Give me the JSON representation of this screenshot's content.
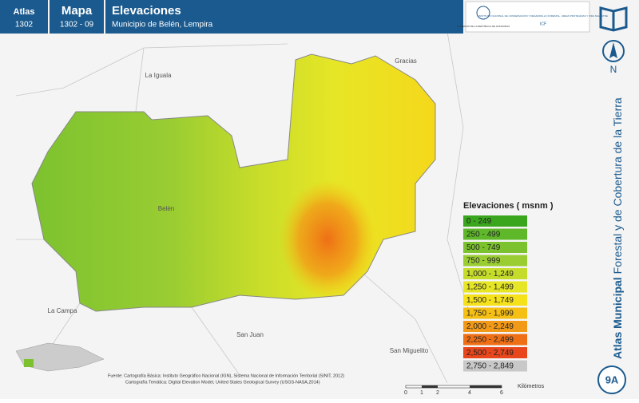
{
  "header": {
    "atlas_label": "Atlas",
    "atlas_number": "1302",
    "mapa_label": "Mapa",
    "mapa_number": "1302 - 09",
    "title": "Elevaciones",
    "subtitle": "Municipio de Belén, Lempira",
    "logo_left": "GOBIERNO DE LA REPÚBLICA DE HONDURAS",
    "logo_right": "INSTITUTO NACIONAL DE CONSERVACIÓN Y DESARROLLO FORESTAL, ÁREAS PROTEGIDAS Y VIDA SILVESTRE",
    "logo_acronym": "ICF"
  },
  "side": {
    "title_bold": "Atlas Municipal",
    "title_rest": "Forestal y de Cobertura de la Tierra",
    "north": "N",
    "badge": "9A"
  },
  "places": [
    "La Iguala",
    "Gracias",
    "Belén",
    "La Campa",
    "San Juan",
    "San Miguelito"
  ],
  "legend": {
    "title": "Elevaciones ( msnm )",
    "items": [
      {
        "label": "0 - 249",
        "color": "#3aa61e"
      },
      {
        "label": "250 - 499",
        "color": "#5fb82a"
      },
      {
        "label": "500 - 749",
        "color": "#7cc22f"
      },
      {
        "label": "750 - 999",
        "color": "#9acd32"
      },
      {
        "label": "1,000 - 1,249",
        "color": "#c6dc2a"
      },
      {
        "label": "1,250 - 1,499",
        "color": "#e6e626"
      },
      {
        "label": "1,500 - 1,749",
        "color": "#f5e21a"
      },
      {
        "label": "1,750 - 1,999",
        "color": "#f5bf14"
      },
      {
        "label": "2,000 - 2,249",
        "color": "#f29a17"
      },
      {
        "label": "2,250 - 2,499",
        "color": "#ef6f16"
      },
      {
        "label": "2,500 - 2,749",
        "color": "#e8461c"
      },
      {
        "label": "2,750 - 2,849",
        "color": "#c8c8c8"
      }
    ]
  },
  "scale": {
    "ticks": [
      "0",
      "1",
      "2",
      "4",
      "6"
    ],
    "unit": "Kilómetros"
  },
  "sources": [
    "Fuente: Cartografía Básica: Instituto Geográfico Nacional (IGN), Sistema Nacional de Información Territorial (SINIT, 2012)",
    "Cartografía Temática: Digital Elevation Model, United States Geological Survey (USGS-NASA,2014)"
  ]
}
